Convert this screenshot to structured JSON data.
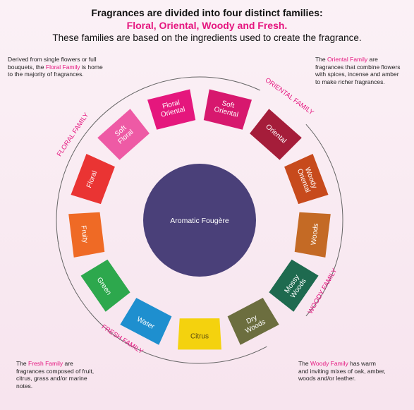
{
  "header": {
    "line1": "Fragrances are divided into four distinct families:",
    "line2": "Floral, Oriental, Woody and Fresh.",
    "line3": "These families are based on the ingredients used to create the fragrance."
  },
  "descriptions": {
    "floral": {
      "before": "Derived from single flowers or full bouquets, the ",
      "highlight": "Floral Family",
      "after": " is home to the majority of fragrances."
    },
    "oriental": {
      "before": "The ",
      "highlight": "Oriental Family",
      "after": " are fragrances that combine flowers with spices, incense and amber to make richer fragrances."
    },
    "fresh": {
      "before": "The ",
      "highlight": "Fresh Family",
      "after": " are fragrances composed of fruit, citrus, grass and/or marine notes."
    },
    "woody": {
      "before": "The ",
      "highlight": "Woody Family",
      "after": " has warm and inviting mixes of oak, amber, woods and/or leather."
    }
  },
  "center": {
    "label": "Aromatic Fougère",
    "color": "#4a4079"
  },
  "segments": [
    {
      "name": "floral-oriental",
      "lines": [
        "Floral",
        "Oriental"
      ],
      "color": "#e5177d"
    },
    {
      "name": "soft-oriental",
      "lines": [
        "Soft",
        "Oriental"
      ],
      "color": "#d7186e"
    },
    {
      "name": "oriental",
      "lines": [
        "Oriental"
      ],
      "color": "#a51d3a"
    },
    {
      "name": "woody-oriental",
      "lines": [
        "Woody",
        "Oriental"
      ],
      "color": "#c74a1c"
    },
    {
      "name": "woods",
      "lines": [
        "Woods"
      ],
      "color": "#c46a25"
    },
    {
      "name": "mossy-woods",
      "lines": [
        "Mossy",
        "Woods"
      ],
      "color": "#1e6a4f"
    },
    {
      "name": "dry-woods",
      "lines": [
        "Dry",
        "Woods"
      ],
      "color": "#6c6e3f"
    },
    {
      "name": "citrus",
      "lines": [
        "Citrus"
      ],
      "color": "#f4d20e"
    },
    {
      "name": "water",
      "lines": [
        "Water"
      ],
      "color": "#1e8fcf"
    },
    {
      "name": "green",
      "lines": [
        "Green"
      ],
      "color": "#2da84d"
    },
    {
      "name": "fruity",
      "lines": [
        "Fruity"
      ],
      "color": "#ef6a25"
    },
    {
      "name": "floral",
      "lines": [
        "Floral"
      ],
      "color": "#ea3433"
    },
    {
      "name": "soft-floral",
      "lines": [
        "Soft",
        "Floral"
      ],
      "color": "#ee5aa5"
    }
  ],
  "family_labels": {
    "floral": "FLORAL FAMILY",
    "oriental": "ORIENTAL FAMILY",
    "woody": "WOODY FAMILY",
    "fresh": "FRESH FAMILY"
  },
  "colors": {
    "accent": "#e5167f",
    "arc": "#666666"
  }
}
